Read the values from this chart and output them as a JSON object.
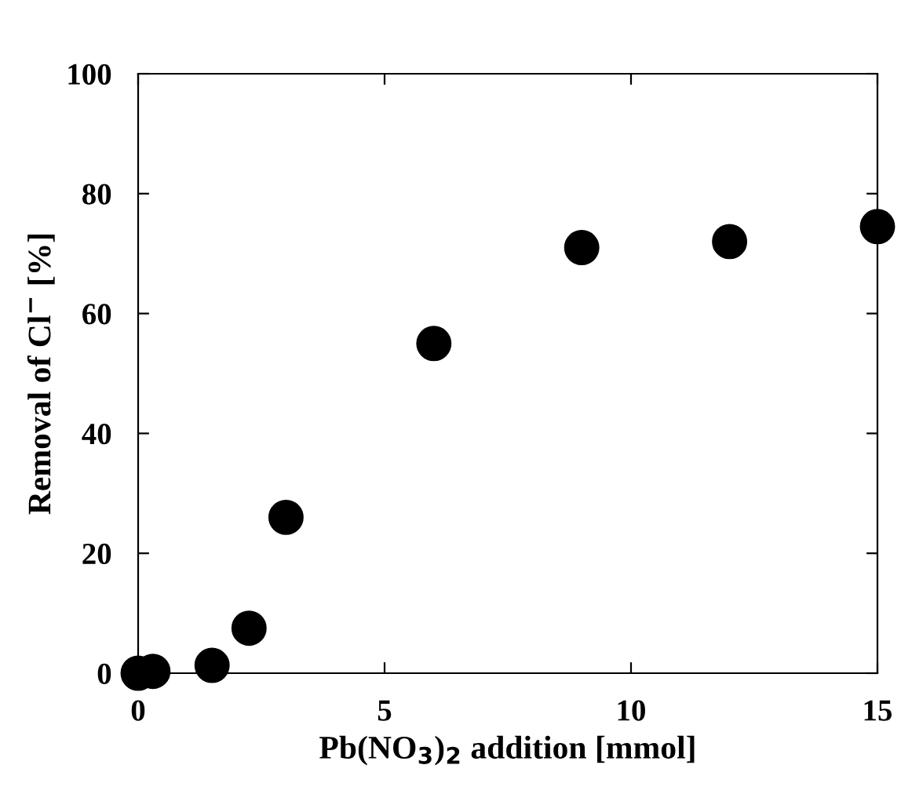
{
  "chart_data": {
    "type": "scatter",
    "xlabel": "Pb(NO$_{3}$)$_{2}$ addition [mmol]",
    "ylabel": "Removal of Cl$^{−}$ [%]",
    "x": [
      0,
      0.3,
      1.5,
      2.25,
      3,
      6,
      9,
      12,
      15
    ],
    "series": [
      {
        "color": "#000000",
        "values": [
          0,
          0.3,
          1.3,
          7.5,
          26,
          55,
          71,
          72,
          74.5
        ]
      }
    ],
    "xlim": [
      0,
      15
    ],
    "ylim": [
      0,
      100
    ],
    "xticks": [
      0,
      5,
      10,
      15
    ],
    "yticks": [
      0,
      20,
      40,
      60,
      80,
      100
    ],
    "marker": "circle",
    "grid": false,
    "legend": false
  }
}
